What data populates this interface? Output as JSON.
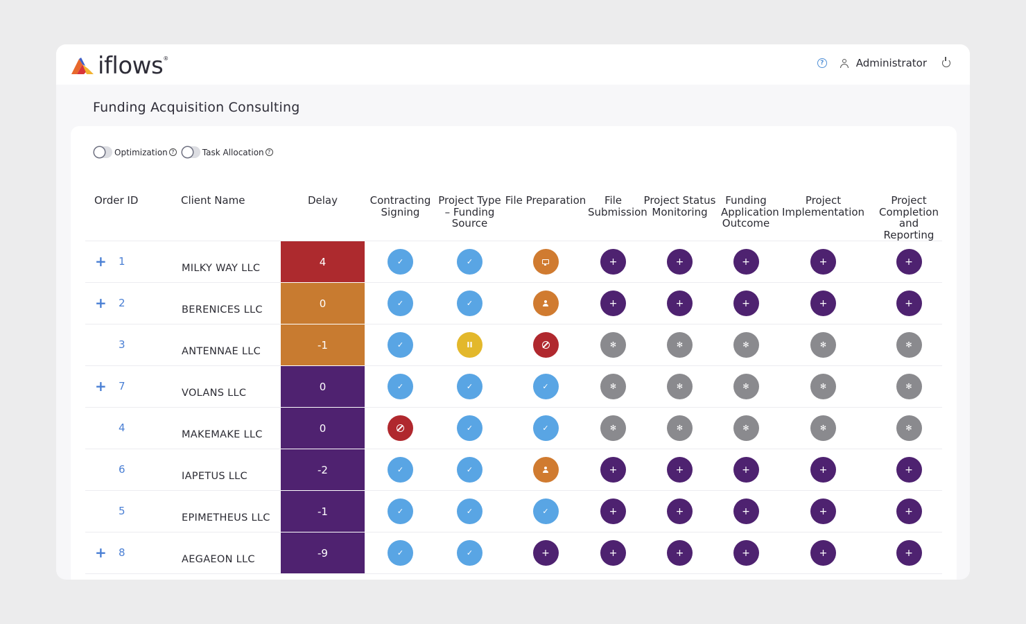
{
  "app": {
    "brand": "iflows",
    "brand_mark": "®",
    "user": "Administrator",
    "icons": {
      "help": "help-circle-icon",
      "user": "user-icon",
      "power": "power-icon"
    }
  },
  "page": {
    "title": "Funding Acquisition Consulting"
  },
  "toggles": [
    {
      "label": "Optimization",
      "on": false
    },
    {
      "label": "Task Allocation",
      "on": false
    }
  ],
  "table": {
    "headers": {
      "order_id": "Order ID",
      "client": "Client Name",
      "delay": "Delay",
      "stages": [
        "Contracting Signing",
        "Project Type – Funding Source",
        "File Preparation",
        "File Submission",
        "Project Status Monitoring",
        "Funding Application Outcome",
        "Project Implementation",
        "Project Completion and Reporting"
      ]
    },
    "status_colors": {
      "done": "#59a5e4",
      "add": "#4e2270",
      "waiting": "#8a8a8e",
      "blocked": "#b0282e",
      "paused": "#e3b82b",
      "review": "#d07b30",
      "assign": "#d07b30"
    },
    "delay_colors": {
      "red": "#ad2a2e",
      "orange": "#c87b30",
      "purple": "#4f2270"
    },
    "rows": [
      {
        "id": "1",
        "expandable": true,
        "client": "MILKY WAY LLC",
        "delay": "4",
        "delay_color": "red",
        "stages": [
          "done",
          "done",
          "review",
          "add",
          "add",
          "add",
          "add",
          "add"
        ]
      },
      {
        "id": "2",
        "expandable": true,
        "client": "BERENICES LLC",
        "delay": "0",
        "delay_color": "orange",
        "stages": [
          "done",
          "done",
          "assign",
          "add",
          "add",
          "add",
          "add",
          "add"
        ]
      },
      {
        "id": "3",
        "expandable": false,
        "client": "ANTENNAE LLC",
        "delay": "-1",
        "delay_color": "orange",
        "stages": [
          "done",
          "paused",
          "blocked",
          "waiting",
          "waiting",
          "waiting",
          "waiting",
          "waiting"
        ]
      },
      {
        "id": "7",
        "expandable": true,
        "client": "VOLANS LLC",
        "delay": "0",
        "delay_color": "purple",
        "stages": [
          "done",
          "done",
          "done",
          "waiting",
          "waiting",
          "waiting",
          "waiting",
          "waiting"
        ]
      },
      {
        "id": "4",
        "expandable": false,
        "client": "MAKEMAKE LLC",
        "delay": "0",
        "delay_color": "purple",
        "stages": [
          "blocked",
          "done",
          "done",
          "waiting",
          "waiting",
          "waiting",
          "waiting",
          "waiting"
        ]
      },
      {
        "id": "6",
        "expandable": false,
        "client": "IAPETUS LLC",
        "delay": "-2",
        "delay_color": "purple",
        "stages": [
          "done",
          "done",
          "assign",
          "add",
          "add",
          "add",
          "add",
          "add"
        ]
      },
      {
        "id": "5",
        "expandable": false,
        "client": "EPIMETHEUS LLC",
        "delay": "-1",
        "delay_color": "purple",
        "stages": [
          "done",
          "done",
          "done",
          "add",
          "add",
          "add",
          "add",
          "add"
        ]
      },
      {
        "id": "8",
        "expandable": true,
        "client": "AEGAEON LLC",
        "delay": "-9",
        "delay_color": "purple",
        "stages": [
          "done",
          "done",
          "add",
          "add",
          "add",
          "add",
          "add",
          "add"
        ]
      }
    ]
  }
}
